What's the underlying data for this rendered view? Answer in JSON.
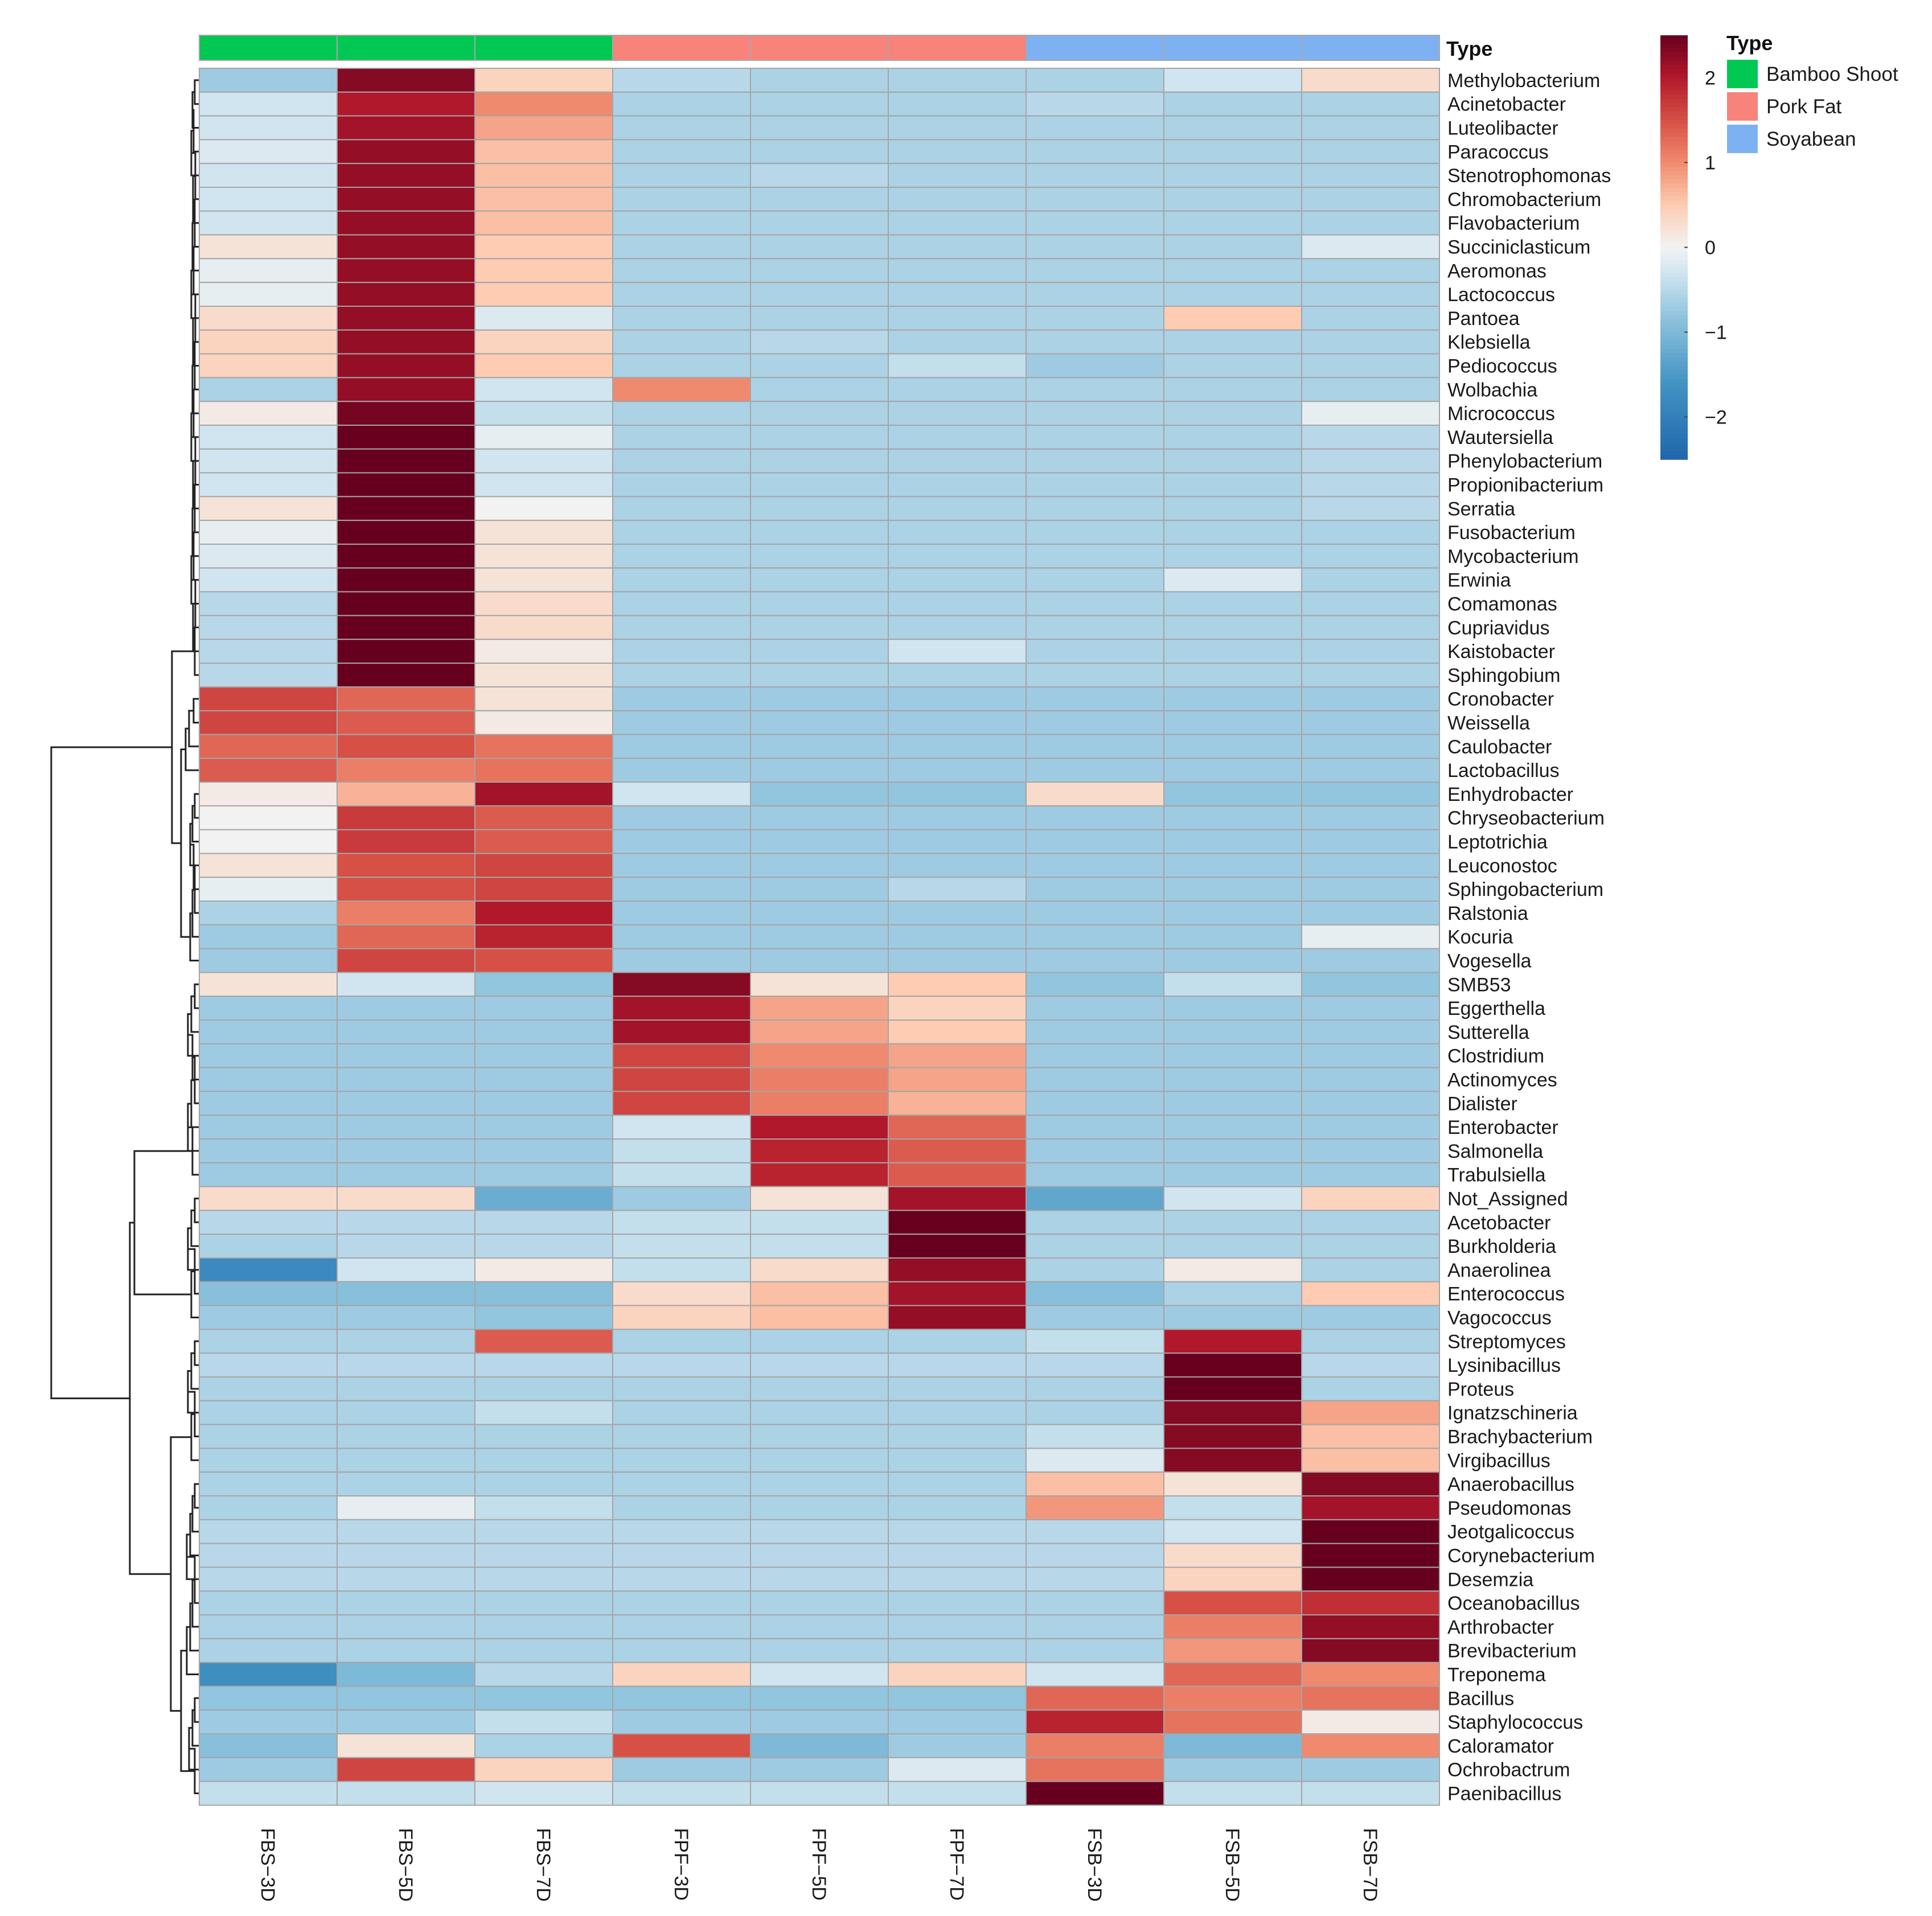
{
  "chart_data": {
    "type": "heatmap",
    "columns": [
      "FBS−3D",
      "FBS−5D",
      "FBS−7D",
      "FPF−3D",
      "FPF−5D",
      "FPF−7D",
      "FSB−3D",
      "FSB−5D",
      "FSB−7D"
    ],
    "column_types": [
      "Bamboo Shoot",
      "Bamboo Shoot",
      "Bamboo Shoot",
      "Pork Fat",
      "Pork Fat",
      "Pork Fat",
      "Soyabean",
      "Soyabean",
      "Soyabean"
    ],
    "annotation_title": "Type",
    "annotation_legend": [
      {
        "label": "Bamboo Shoot",
        "color": "#00c853"
      },
      {
        "label": "Pork Fat",
        "color": "#f8837b"
      },
      {
        "label": "Soyabean",
        "color": "#7eb1f2"
      }
    ],
    "color_scale": {
      "range": [
        -2.5,
        2.5
      ],
      "ticks": [
        {
          "value": 2,
          "label": "2"
        },
        {
          "value": 1,
          "label": "1"
        },
        {
          "value": 0,
          "label": "0"
        },
        {
          "value": -1,
          "label": "−1"
        },
        {
          "value": -2,
          "label": "−2"
        }
      ],
      "low_color": "#2166ac",
      "mid_color": "#f2f2f2",
      "high_color": "#67001f"
    },
    "rows": [
      {
        "name": "Methylobacterium",
        "values": [
          -0.7,
          2.3,
          0.4,
          -0.5,
          -0.6,
          -0.6,
          -0.6,
          -0.3,
          0.3
        ]
      },
      {
        "name": "Acinetobacter",
        "values": [
          -0.3,
          2.0,
          1.0,
          -0.6,
          -0.6,
          -0.6,
          -0.5,
          -0.6,
          -0.6
        ]
      },
      {
        "name": "Luteolibacter",
        "values": [
          -0.3,
          2.1,
          0.8,
          -0.6,
          -0.6,
          -0.6,
          -0.6,
          -0.6,
          -0.6
        ]
      },
      {
        "name": "Paracoccus",
        "values": [
          -0.2,
          2.2,
          0.6,
          -0.6,
          -0.6,
          -0.6,
          -0.6,
          -0.6,
          -0.6
        ]
      },
      {
        "name": "Stenotrophomonas",
        "values": [
          -0.3,
          2.2,
          0.6,
          -0.6,
          -0.5,
          -0.6,
          -0.6,
          -0.6,
          -0.6
        ]
      },
      {
        "name": "Chromobacterium",
        "values": [
          -0.3,
          2.2,
          0.6,
          -0.6,
          -0.6,
          -0.6,
          -0.6,
          -0.6,
          -0.6
        ]
      },
      {
        "name": "Flavobacterium",
        "values": [
          -0.3,
          2.2,
          0.6,
          -0.6,
          -0.6,
          -0.6,
          -0.6,
          -0.6,
          -0.6
        ]
      },
      {
        "name": "Succiniclasticum",
        "values": [
          0.2,
          2.2,
          0.5,
          -0.6,
          -0.6,
          -0.6,
          -0.6,
          -0.6,
          -0.2
        ]
      },
      {
        "name": "Aeromonas",
        "values": [
          -0.1,
          2.2,
          0.5,
          -0.6,
          -0.6,
          -0.6,
          -0.6,
          -0.6,
          -0.6
        ]
      },
      {
        "name": "Lactococcus",
        "values": [
          -0.1,
          2.2,
          0.5,
          -0.6,
          -0.6,
          -0.6,
          -0.6,
          -0.6,
          -0.6
        ]
      },
      {
        "name": "Pantoea",
        "values": [
          0.3,
          2.2,
          -0.2,
          -0.6,
          -0.6,
          -0.6,
          -0.6,
          0.5,
          -0.6
        ]
      },
      {
        "name": "Klebsiella",
        "values": [
          0.4,
          2.2,
          0.4,
          -0.6,
          -0.5,
          -0.6,
          -0.6,
          -0.6,
          -0.6
        ]
      },
      {
        "name": "Pediococcus",
        "values": [
          0.4,
          2.2,
          0.5,
          -0.6,
          -0.6,
          -0.4,
          -0.7,
          -0.6,
          -0.6
        ]
      },
      {
        "name": "Wolbachia",
        "values": [
          -0.6,
          2.2,
          -0.3,
          1.0,
          -0.6,
          -0.6,
          -0.6,
          -0.6,
          -0.6
        ]
      },
      {
        "name": "Micrococcus",
        "values": [
          0.1,
          2.4,
          -0.4,
          -0.6,
          -0.6,
          -0.6,
          -0.6,
          -0.6,
          -0.1
        ]
      },
      {
        "name": "Wautersiella",
        "values": [
          -0.3,
          2.5,
          -0.1,
          -0.6,
          -0.6,
          -0.6,
          -0.6,
          -0.6,
          -0.5
        ]
      },
      {
        "name": "Phenylobacterium",
        "values": [
          -0.3,
          2.5,
          -0.3,
          -0.6,
          -0.6,
          -0.6,
          -0.6,
          -0.6,
          -0.5
        ]
      },
      {
        "name": "Propionibacterium",
        "values": [
          -0.3,
          2.5,
          -0.3,
          -0.6,
          -0.6,
          -0.6,
          -0.6,
          -0.6,
          -0.5
        ]
      },
      {
        "name": "Serratia",
        "values": [
          0.2,
          2.5,
          0.0,
          -0.6,
          -0.6,
          -0.6,
          -0.6,
          -0.6,
          -0.5
        ]
      },
      {
        "name": "Fusobacterium",
        "values": [
          -0.1,
          2.5,
          0.2,
          -0.6,
          -0.6,
          -0.6,
          -0.6,
          -0.6,
          -0.6
        ]
      },
      {
        "name": "Mycobacterium",
        "values": [
          -0.2,
          2.5,
          0.2,
          -0.6,
          -0.6,
          -0.6,
          -0.6,
          -0.6,
          -0.6
        ]
      },
      {
        "name": "Erwinia",
        "values": [
          -0.3,
          2.5,
          0.2,
          -0.6,
          -0.6,
          -0.6,
          -0.6,
          -0.2,
          -0.6
        ]
      },
      {
        "name": "Comamonas",
        "values": [
          -0.5,
          2.5,
          0.3,
          -0.6,
          -0.6,
          -0.6,
          -0.6,
          -0.6,
          -0.6
        ]
      },
      {
        "name": "Cupriavidus",
        "values": [
          -0.5,
          2.5,
          0.3,
          -0.6,
          -0.6,
          -0.6,
          -0.6,
          -0.6,
          -0.6
        ]
      },
      {
        "name": "Kaistobacter",
        "values": [
          -0.5,
          2.5,
          0.1,
          -0.6,
          -0.6,
          -0.3,
          -0.6,
          -0.6,
          -0.6
        ]
      },
      {
        "name": "Sphingobium",
        "values": [
          -0.5,
          2.5,
          0.2,
          -0.6,
          -0.6,
          -0.6,
          -0.6,
          -0.6,
          -0.6
        ]
      },
      {
        "name": "Cronobacter",
        "values": [
          1.6,
          1.3,
          0.2,
          -0.7,
          -0.7,
          -0.7,
          -0.7,
          -0.7,
          -0.7
        ]
      },
      {
        "name": "Weissella",
        "values": [
          1.6,
          1.4,
          0.1,
          -0.7,
          -0.7,
          -0.7,
          -0.7,
          -0.7,
          -0.7
        ]
      },
      {
        "name": "Caulobacter",
        "values": [
          1.3,
          1.5,
          1.2,
          -0.7,
          -0.7,
          -0.7,
          -0.7,
          -0.7,
          -0.7
        ]
      },
      {
        "name": "Lactobacillus",
        "values": [
          1.4,
          1.1,
          1.2,
          -0.7,
          -0.7,
          -0.7,
          -0.7,
          -0.7,
          -0.7
        ]
      },
      {
        "name": "Enhydrobacter",
        "values": [
          0.1,
          0.7,
          2.1,
          -0.3,
          -0.8,
          -0.8,
          0.3,
          -0.8,
          -0.8
        ]
      },
      {
        "name": "Chryseobacterium",
        "values": [
          0.0,
          1.7,
          1.4,
          -0.7,
          -0.7,
          -0.7,
          -0.7,
          -0.7,
          -0.7
        ]
      },
      {
        "name": "Leptotrichia",
        "values": [
          0.0,
          1.7,
          1.4,
          -0.7,
          -0.7,
          -0.7,
          -0.7,
          -0.7,
          -0.7
        ]
      },
      {
        "name": "Leuconostoc",
        "values": [
          0.2,
          1.5,
          1.6,
          -0.7,
          -0.7,
          -0.7,
          -0.7,
          -0.7,
          -0.7
        ]
      },
      {
        "name": "Sphingobacterium",
        "values": [
          -0.1,
          1.5,
          1.6,
          -0.7,
          -0.7,
          -0.5,
          -0.7,
          -0.7,
          -0.7
        ]
      },
      {
        "name": "Ralstonia",
        "values": [
          -0.6,
          1.1,
          2.0,
          -0.7,
          -0.7,
          -0.7,
          -0.7,
          -0.7,
          -0.7
        ]
      },
      {
        "name": "Kocuria",
        "values": [
          -0.7,
          1.3,
          1.9,
          -0.7,
          -0.7,
          -0.7,
          -0.7,
          -0.7,
          -0.1
        ]
      },
      {
        "name": "Vogesella",
        "values": [
          -0.7,
          1.6,
          1.5,
          -0.7,
          -0.7,
          -0.7,
          -0.7,
          -0.7,
          -0.7
        ]
      },
      {
        "name": "SMB53",
        "values": [
          0.2,
          -0.3,
          -0.8,
          2.3,
          0.2,
          0.5,
          -0.8,
          -0.4,
          -0.8
        ]
      },
      {
        "name": "Eggerthella",
        "values": [
          -0.7,
          -0.7,
          -0.7,
          2.1,
          0.8,
          0.4,
          -0.7,
          -0.7,
          -0.7
        ]
      },
      {
        "name": "Sutterella",
        "values": [
          -0.7,
          -0.7,
          -0.7,
          2.1,
          0.8,
          0.5,
          -0.7,
          -0.7,
          -0.7
        ]
      },
      {
        "name": "Clostridium",
        "values": [
          -0.7,
          -0.7,
          -0.7,
          1.6,
          1.0,
          0.8,
          -0.7,
          -0.7,
          -0.7
        ]
      },
      {
        "name": "Actinomyces",
        "values": [
          -0.7,
          -0.7,
          -0.7,
          1.6,
          1.1,
          0.8,
          -0.7,
          -0.7,
          -0.7
        ]
      },
      {
        "name": "Dialister",
        "values": [
          -0.7,
          -0.7,
          -0.7,
          1.6,
          1.1,
          0.7,
          -0.7,
          -0.7,
          -0.7
        ]
      },
      {
        "name": "Enterobacter",
        "values": [
          -0.7,
          -0.7,
          -0.7,
          -0.3,
          2.0,
          1.3,
          -0.7,
          -0.7,
          -0.7
        ]
      },
      {
        "name": "Salmonella",
        "values": [
          -0.7,
          -0.7,
          -0.7,
          -0.4,
          1.9,
          1.4,
          -0.7,
          -0.7,
          -0.7
        ]
      },
      {
        "name": "Trabulsiella",
        "values": [
          -0.7,
          -0.7,
          -0.7,
          -0.4,
          1.9,
          1.4,
          -0.7,
          -0.7,
          -0.7
        ]
      },
      {
        "name": "Not_Assigned",
        "values": [
          0.3,
          0.3,
          -1.2,
          -0.7,
          0.2,
          2.1,
          -1.3,
          -0.3,
          0.4
        ]
      },
      {
        "name": "Acetobacter",
        "values": [
          -0.5,
          -0.5,
          -0.5,
          -0.4,
          -0.4,
          2.5,
          -0.6,
          -0.6,
          -0.6
        ]
      },
      {
        "name": "Burkholderia",
        "values": [
          -0.6,
          -0.5,
          -0.5,
          -0.4,
          -0.4,
          2.5,
          -0.6,
          -0.6,
          -0.6
        ]
      },
      {
        "name": "Anaerolinea",
        "values": [
          -1.8,
          -0.3,
          0.1,
          -0.4,
          0.3,
          2.2,
          -0.6,
          0.1,
          -0.6
        ]
      },
      {
        "name": "Enterococcus",
        "values": [
          -0.9,
          -0.9,
          -0.9,
          0.3,
          0.6,
          2.1,
          -0.9,
          -0.6,
          0.5
        ]
      },
      {
        "name": "Vagococcus",
        "values": [
          -0.7,
          -0.7,
          -0.8,
          0.4,
          0.6,
          2.2,
          -0.7,
          -0.7,
          -0.7
        ]
      },
      {
        "name": "Streptomyces",
        "values": [
          -0.6,
          -0.6,
          1.4,
          -0.6,
          -0.6,
          -0.6,
          -0.4,
          2.0,
          -0.6
        ]
      },
      {
        "name": "Lysinibacillus",
        "values": [
          -0.5,
          -0.5,
          -0.5,
          -0.5,
          -0.5,
          -0.5,
          -0.5,
          2.5,
          -0.5
        ]
      },
      {
        "name": "Proteus",
        "values": [
          -0.6,
          -0.6,
          -0.6,
          -0.6,
          -0.6,
          -0.6,
          -0.6,
          2.5,
          -0.6
        ]
      },
      {
        "name": "Ignatzschineria",
        "values": [
          -0.6,
          -0.6,
          -0.4,
          -0.6,
          -0.6,
          -0.6,
          -0.6,
          2.3,
          0.8
        ]
      },
      {
        "name": "Brachybacterium",
        "values": [
          -0.6,
          -0.6,
          -0.6,
          -0.6,
          -0.6,
          -0.6,
          -0.4,
          2.3,
          0.6
        ]
      },
      {
        "name": "Virgibacillus",
        "values": [
          -0.6,
          -0.6,
          -0.6,
          -0.6,
          -0.6,
          -0.6,
          -0.2,
          2.3,
          0.6
        ]
      },
      {
        "name": "Anaerobacillus",
        "values": [
          -0.6,
          -0.6,
          -0.6,
          -0.6,
          -0.6,
          -0.6,
          0.6,
          0.2,
          2.3
        ]
      },
      {
        "name": "Pseudomonas",
        "values": [
          -0.6,
          -0.1,
          -0.4,
          -0.6,
          -0.6,
          -0.6,
          0.9,
          -0.4,
          2.1
        ]
      },
      {
        "name": "Jeotgalicoccus",
        "values": [
          -0.5,
          -0.5,
          -0.5,
          -0.5,
          -0.5,
          -0.5,
          -0.5,
          -0.3,
          2.5
        ]
      },
      {
        "name": "Corynebacterium",
        "values": [
          -0.5,
          -0.5,
          -0.5,
          -0.5,
          -0.5,
          -0.5,
          -0.5,
          0.3,
          2.5
        ]
      },
      {
        "name": "Desemzia",
        "values": [
          -0.5,
          -0.5,
          -0.5,
          -0.5,
          -0.5,
          -0.5,
          -0.5,
          0.4,
          2.5
        ]
      },
      {
        "name": "Oceanobacillus",
        "values": [
          -0.6,
          -0.6,
          -0.6,
          -0.6,
          -0.6,
          -0.6,
          -0.6,
          1.5,
          1.8
        ]
      },
      {
        "name": "Arthrobacter",
        "values": [
          -0.6,
          -0.6,
          -0.6,
          -0.6,
          -0.6,
          -0.6,
          -0.6,
          1.1,
          2.2
        ]
      },
      {
        "name": "Brevibacterium",
        "values": [
          -0.6,
          -0.6,
          -0.6,
          -0.6,
          -0.6,
          -0.6,
          -0.6,
          0.9,
          2.3
        ]
      },
      {
        "name": "Treponema",
        "values": [
          -1.7,
          -1.0,
          -0.5,
          0.4,
          -0.3,
          0.4,
          -0.3,
          1.3,
          1.0
        ]
      },
      {
        "name": "Bacillus",
        "values": [
          -0.8,
          -0.8,
          -0.8,
          -0.8,
          -0.8,
          -0.8,
          1.3,
          1.1,
          1.2
        ]
      },
      {
        "name": "Staphylococcus",
        "values": [
          -0.7,
          -0.7,
          -0.4,
          -0.7,
          -0.7,
          -0.7,
          1.9,
          1.2,
          0.1
        ]
      },
      {
        "name": "Caloramator",
        "values": [
          -0.9,
          0.2,
          -0.6,
          1.5,
          -1.0,
          -0.7,
          1.1,
          -1.0,
          1.0
        ]
      },
      {
        "name": "Ochrobactrum",
        "values": [
          -0.7,
          1.6,
          0.4,
          -0.7,
          -0.7,
          -0.2,
          1.2,
          -0.7,
          -0.7
        ]
      },
      {
        "name": "Paenibacillus",
        "values": [
          -0.4,
          -0.4,
          -0.3,
          -0.4,
          -0.4,
          -0.4,
          2.5,
          -0.4,
          -0.4
        ]
      }
    ]
  }
}
